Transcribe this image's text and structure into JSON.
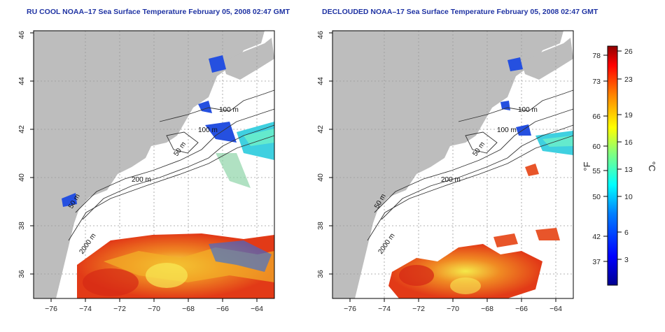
{
  "panels": [
    {
      "title": "RU COOL NOAA–17 Sea Surface Temperature February 05, 2008 02:47 GMT",
      "contours": [
        "100 m",
        "100 m",
        "50 m",
        "200 m",
        "50 m",
        "2000 m"
      ]
    },
    {
      "title": "DECLOUDED NOAA–17 Sea Surface Temperature February 05, 2008 02:47 GMT",
      "contours": [
        "100 m",
        "100 m",
        "50 m",
        "200 m",
        "50 m",
        "2000 m"
      ]
    }
  ],
  "map_axes": {
    "lon_ticks": [
      "−76",
      "−74",
      "−72",
      "−70",
      "−68",
      "−66",
      "−64"
    ],
    "lat_ticks": [
      "36",
      "38",
      "40",
      "42",
      "44",
      "46"
    ],
    "lon_range": [
      -77,
      -63
    ],
    "lat_range": [
      35,
      46
    ]
  },
  "colorbar": {
    "f_ticks": [
      "78",
      "73",
      "66",
      "60",
      "55",
      "50",
      "42",
      "37"
    ],
    "c_ticks": [
      "26",
      "23",
      "19",
      "16",
      "13",
      "10",
      "6",
      "3"
    ],
    "f_label": "°F",
    "c_label": "°C"
  },
  "colors": {
    "land": "#bdbdbd",
    "title": "#1f33a3",
    "warm": "#e8401a",
    "cold": "#1e3ed8",
    "cool": "#1ed8e8"
  }
}
